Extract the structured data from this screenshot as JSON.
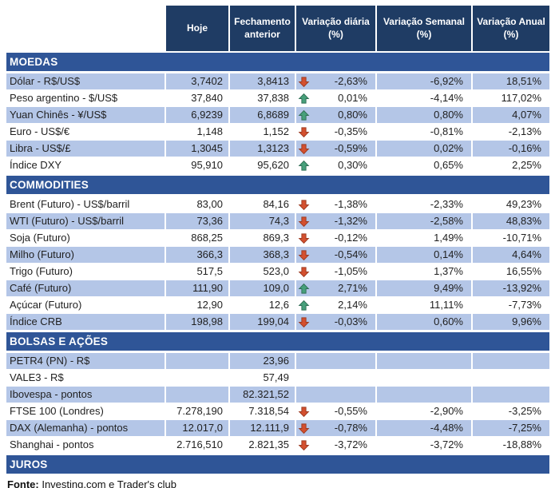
{
  "colors": {
    "header_bg": "#1F3C64",
    "band_bg": "#2F5597",
    "stripe": "#B4C6E7",
    "arrow_up_fill": "#47A07B",
    "arrow_up_stroke": "#2F6E54",
    "arrow_down_fill": "#D4502F",
    "arrow_down_stroke": "#9C3A20"
  },
  "header": {
    "columns": [
      "",
      "Hoje",
      "Fechamento anterior",
      "Variação diária (%)",
      "Variação Semanal (%)",
      "Variação Anual (%)"
    ]
  },
  "sections": [
    {
      "id": "moedas",
      "title": "MOEDAS",
      "stripe_start": 0,
      "rows": [
        {
          "label": "Dólar - R$/US$",
          "hoje": "3,7402",
          "fechamento": "3,8413",
          "arrow": "down",
          "diaria": "-2,63%",
          "semanal": "-6,92%",
          "anual": "18,51%"
        },
        {
          "label": "Peso argentino - $/US$",
          "hoje": "37,840",
          "fechamento": "37,838",
          "arrow": "up",
          "diaria": "0,01%",
          "semanal": "-4,14%",
          "anual": "117,02%"
        },
        {
          "label": "Yuan Chinês - ¥/US$",
          "hoje": "6,9239",
          "fechamento": "6,8689",
          "arrow": "up",
          "diaria": "0,80%",
          "semanal": "0,80%",
          "anual": "4,07%"
        },
        {
          "label": "Euro - US$/€",
          "hoje": "1,148",
          "fechamento": "1,152",
          "arrow": "down",
          "diaria": "-0,35%",
          "semanal": "-0,81%",
          "anual": "-2,13%"
        },
        {
          "label": "Libra - US$/£",
          "hoje": "1,3045",
          "fechamento": "1,3123",
          "arrow": "down",
          "diaria": "-0,59%",
          "semanal": "0,02%",
          "anual": "-0,16%"
        },
        {
          "label": "Índice DXY",
          "hoje": "95,910",
          "fechamento": "95,620",
          "arrow": "up",
          "diaria": "0,30%",
          "semanal": "0,65%",
          "anual": "2,25%"
        }
      ]
    },
    {
      "id": "commodities",
      "title": "COMMODITIES",
      "stripe_start": 1,
      "rows": [
        {
          "label": "Brent (Futuro) - US$/barril",
          "hoje": "83,00",
          "fechamento": "84,16",
          "arrow": "down",
          "diaria": "-1,38%",
          "semanal": "-2,33%",
          "anual": "49,23%"
        },
        {
          "label": "WTI (Futuro) - US$/barril",
          "hoje": "73,36",
          "fechamento": "74,3",
          "arrow": "down",
          "diaria": "-1,32%",
          "semanal": "-2,58%",
          "anual": "48,83%"
        },
        {
          "label": "Soja (Futuro)",
          "hoje": "868,25",
          "fechamento": "869,3",
          "arrow": "down",
          "diaria": "-0,12%",
          "semanal": "1,49%",
          "anual": "-10,71%"
        },
        {
          "label": "Milho (Futuro)",
          "hoje": "366,3",
          "fechamento": "368,3",
          "arrow": "down",
          "diaria": "-0,54%",
          "semanal": "0,14%",
          "anual": "4,64%"
        },
        {
          "label": "Trigo (Futuro)",
          "hoje": "517,5",
          "fechamento": "523,0",
          "arrow": "down",
          "diaria": "-1,05%",
          "semanal": "1,37%",
          "anual": "16,55%"
        },
        {
          "label": "Café (Futuro)",
          "hoje": "111,90",
          "fechamento": "109,0",
          "arrow": "up",
          "diaria": "2,71%",
          "semanal": "9,49%",
          "anual": "-13,92%"
        },
        {
          "label": "Açúcar (Futuro)",
          "hoje": "12,90",
          "fechamento": "12,6",
          "arrow": "up",
          "diaria": "2,14%",
          "semanal": "11,11%",
          "anual": "-7,73%"
        },
        {
          "label": "Índice CRB",
          "hoje": "198,98",
          "fechamento": "199,04",
          "arrow": "down",
          "diaria": "-0,03%",
          "semanal": "0,60%",
          "anual": "9,96%"
        }
      ]
    },
    {
      "id": "bolsas-e-acoes",
      "title": "BOLSAS E AÇÕES",
      "stripe_start": 0,
      "rows": [
        {
          "label": "PETR4 (PN) - R$",
          "hoje": "",
          "fechamento": "23,96",
          "arrow": null,
          "diaria": "",
          "semanal": "",
          "anual": ""
        },
        {
          "label": "VALE3 - R$",
          "hoje": "",
          "fechamento": "57,49",
          "arrow": null,
          "diaria": "",
          "semanal": "",
          "anual": ""
        },
        {
          "label": "Ibovespa - pontos",
          "hoje": "",
          "fechamento": "82.321,52",
          "arrow": null,
          "diaria": "",
          "semanal": "",
          "anual": ""
        },
        {
          "label": "FTSE 100 (Londres)",
          "hoje": "7.278,190",
          "fechamento": "7.318,54",
          "arrow": "down",
          "diaria": "-0,55%",
          "semanal": "-2,90%",
          "anual": "-3,25%"
        },
        {
          "label": "DAX (Alemanha) - pontos",
          "hoje": "12.017,0",
          "fechamento": "12.111,9",
          "arrow": "down",
          "diaria": "-0,78%",
          "semanal": "-4,48%",
          "anual": "-7,25%"
        },
        {
          "label": "Shanghai - pontos",
          "hoje": "2.716,510",
          "fechamento": "2.821,35",
          "arrow": "down",
          "diaria": "-3,72%",
          "semanal": "-3,72%",
          "anual": "-18,88%"
        }
      ]
    },
    {
      "id": "juros",
      "title": "JUROS",
      "stripe_start": 0,
      "rows": []
    }
  ],
  "footer": {
    "label": "Fonte:",
    "text": " Investing.com e Trader's club"
  }
}
